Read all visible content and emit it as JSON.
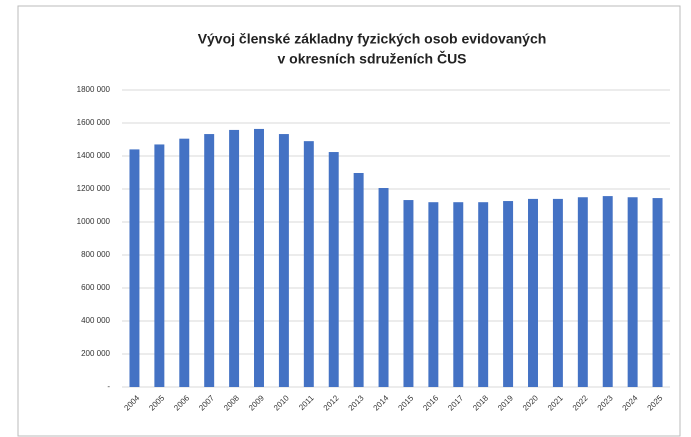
{
  "chart_data": {
    "type": "bar",
    "title": [
      "Vývoj členské základny fyzických osob evidovaných",
      "v okresních sdruženích ČUS"
    ],
    "categories": [
      "2004",
      "2005",
      "2006",
      "2007",
      "2008",
      "2009",
      "2010",
      "2011",
      "2012",
      "2013",
      "2014",
      "2015",
      "2016",
      "2017",
      "2018",
      "2019",
      "2020",
      "2021",
      "2022",
      "2023",
      "2024",
      "2025"
    ],
    "values": [
      1440000,
      1470000,
      1505000,
      1533000,
      1558000,
      1564000,
      1533000,
      1490000,
      1424000,
      1297000,
      1206000,
      1133000,
      1120000,
      1120000,
      1120000,
      1127000,
      1140000,
      1140000,
      1150000,
      1157000,
      1150000,
      1145000
    ],
    "color": "#4472c4",
    "ylim": [
      0,
      1800000
    ],
    "yticks": [
      {
        "value": 0,
        "label": "-"
      },
      {
        "value": 200000,
        "label": "200 000"
      },
      {
        "value": 400000,
        "label": "400 000"
      },
      {
        "value": 600000,
        "label": "600 000"
      },
      {
        "value": 800000,
        "label": "800 000"
      },
      {
        "value": 1000000,
        "label": "1000 000"
      },
      {
        "value": 1200000,
        "label": "1200 000"
      },
      {
        "value": 1400000,
        "label": "1400 000"
      },
      {
        "value": 1600000,
        "label": "1600 000"
      },
      {
        "value": 1800000,
        "label": "1800 000"
      }
    ],
    "grid": true
  }
}
